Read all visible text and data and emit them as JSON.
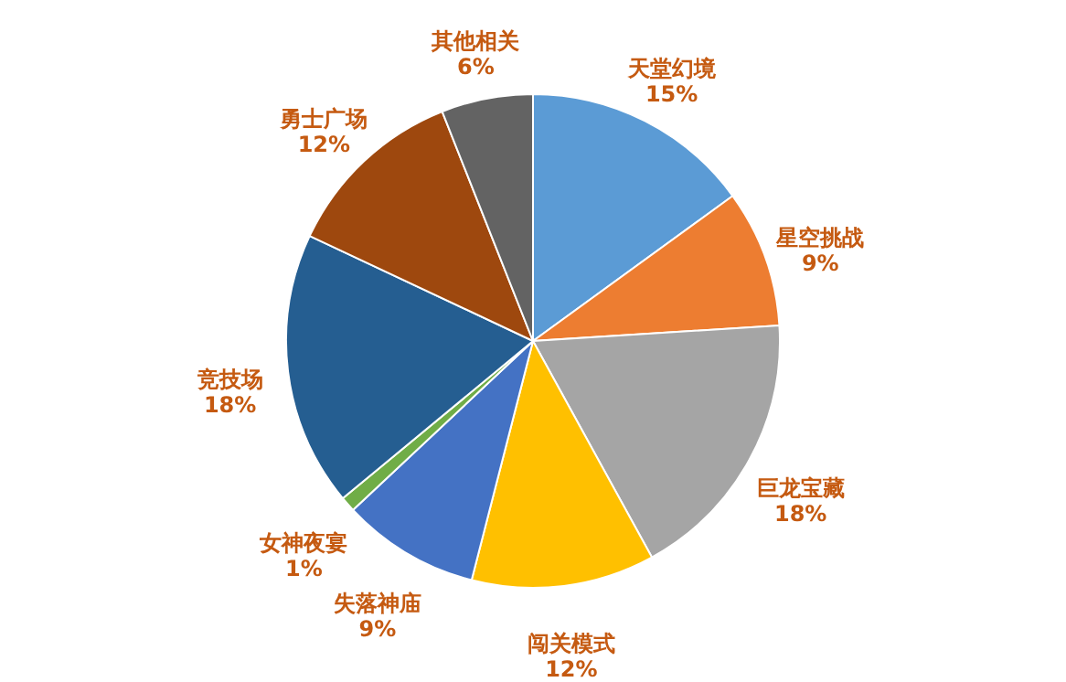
{
  "chart_data": {
    "type": "pie",
    "categories": [
      "天堂幻境",
      "星空挑战",
      "巨龙宝藏",
      "闯关模式",
      "失落神庙",
      "女神夜宴",
      "竞技场",
      "勇士广场",
      "其他相关"
    ],
    "values": [
      15,
      9,
      18,
      12,
      9,
      1,
      18,
      12,
      6
    ],
    "colors": [
      "#5b9bd5",
      "#ed7d31",
      "#a5a5a5",
      "#ffc000",
      "#4472c4",
      "#70ad47",
      "#255e91",
      "#9e480e",
      "#636363"
    ],
    "value_labels": [
      "15%",
      "9%",
      "18%",
      "12%",
      "9%",
      "1%",
      "18%",
      "12%",
      "6%"
    ],
    "legend": false
  }
}
